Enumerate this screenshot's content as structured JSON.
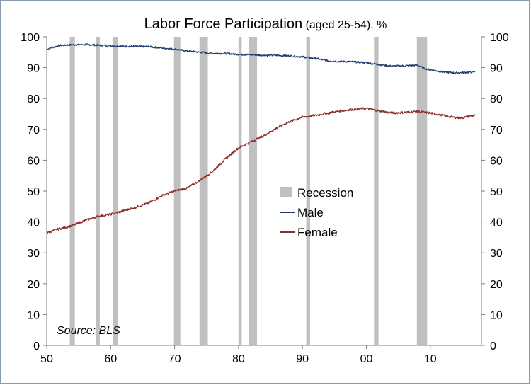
{
  "chart_data": {
    "type": "line",
    "title": "Labor Force Participation",
    "title_suffix": " (aged 25-54), %",
    "source": "Source: BLS",
    "xlim": [
      1950,
      2018
    ],
    "ylim": [
      0,
      100
    ],
    "x_ticks": [
      {
        "value": 1950,
        "label": "50"
      },
      {
        "value": 1960,
        "label": "60"
      },
      {
        "value": 1970,
        "label": "70"
      },
      {
        "value": 1980,
        "label": "80"
      },
      {
        "value": 1990,
        "label": "90"
      },
      {
        "value": 2000,
        "label": "00"
      },
      {
        "value": 2010,
        "label": "10"
      }
    ],
    "y_ticks": [
      0,
      10,
      20,
      30,
      40,
      50,
      60,
      70,
      80,
      90,
      100
    ],
    "legend_position": "center-right",
    "recessions": [
      {
        "start": 1953.6,
        "end": 1954.4
      },
      {
        "start": 1957.7,
        "end": 1958.3
      },
      {
        "start": 1960.3,
        "end": 1961.1
      },
      {
        "start": 1969.9,
        "end": 1970.9
      },
      {
        "start": 1973.9,
        "end": 1975.2
      },
      {
        "start": 1980.0,
        "end": 1980.5
      },
      {
        "start": 1981.6,
        "end": 1982.9
      },
      {
        "start": 1990.6,
        "end": 1991.2
      },
      {
        "start": 2001.2,
        "end": 2001.9
      },
      {
        "start": 2007.9,
        "end": 2009.5
      }
    ],
    "series": [
      {
        "name": "Male",
        "color": "#1f3c6e",
        "points": [
          [
            1950,
            96.0
          ],
          [
            1952,
            97.2
          ],
          [
            1954,
            97.4
          ],
          [
            1956,
            97.5
          ],
          [
            1958,
            97.3
          ],
          [
            1960,
            97.1
          ],
          [
            1962,
            96.9
          ],
          [
            1964,
            96.9
          ],
          [
            1966,
            96.8
          ],
          [
            1968,
            96.4
          ],
          [
            1970,
            96.0
          ],
          [
            1972,
            95.4
          ],
          [
            1974,
            95.0
          ],
          [
            1976,
            94.6
          ],
          [
            1978,
            94.6
          ],
          [
            1980,
            94.3
          ],
          [
            1982,
            94.2
          ],
          [
            1984,
            94.0
          ],
          [
            1986,
            94.0
          ],
          [
            1988,
            93.8
          ],
          [
            1990,
            93.5
          ],
          [
            1992,
            93.0
          ],
          [
            1994,
            92.2
          ],
          [
            1996,
            92.0
          ],
          [
            1998,
            91.9
          ],
          [
            2000,
            91.6
          ],
          [
            2002,
            91.0
          ],
          [
            2004,
            90.5
          ],
          [
            2006,
            90.6
          ],
          [
            2008,
            90.8
          ],
          [
            2009,
            89.8
          ],
          [
            2010,
            89.3
          ],
          [
            2012,
            88.6
          ],
          [
            2014,
            88.3
          ],
          [
            2016,
            88.5
          ],
          [
            2017,
            88.6
          ]
        ]
      },
      {
        "name": "Female",
        "color": "#8b2e2a",
        "points": [
          [
            1950,
            36.5
          ],
          [
            1952,
            37.8
          ],
          [
            1954,
            38.8
          ],
          [
            1956,
            40.5
          ],
          [
            1958,
            41.8
          ],
          [
            1960,
            42.5
          ],
          [
            1962,
            43.6
          ],
          [
            1964,
            44.8
          ],
          [
            1966,
            46.2
          ],
          [
            1968,
            48.5
          ],
          [
            1970,
            50.0
          ],
          [
            1972,
            51.0
          ],
          [
            1974,
            53.5
          ],
          [
            1976,
            56.5
          ],
          [
            1978,
            60.5
          ],
          [
            1980,
            64.0
          ],
          [
            1982,
            66.0
          ],
          [
            1984,
            68.0
          ],
          [
            1986,
            70.5
          ],
          [
            1988,
            72.5
          ],
          [
            1990,
            74.0
          ],
          [
            1992,
            74.5
          ],
          [
            1994,
            75.3
          ],
          [
            1996,
            76.0
          ],
          [
            1998,
            76.5
          ],
          [
            2000,
            76.8
          ],
          [
            2002,
            76.0
          ],
          [
            2004,
            75.3
          ],
          [
            2006,
            75.5
          ],
          [
            2008,
            75.8
          ],
          [
            2010,
            75.3
          ],
          [
            2012,
            74.5
          ],
          [
            2014,
            73.8
          ],
          [
            2015,
            73.7
          ],
          [
            2016,
            74.2
          ],
          [
            2017,
            74.6
          ]
        ]
      }
    ],
    "legend": {
      "recession": "Recession",
      "male": "Male",
      "female": "Female"
    }
  },
  "colors": {
    "recession": "#c0c0c0",
    "axis": "#808080"
  }
}
